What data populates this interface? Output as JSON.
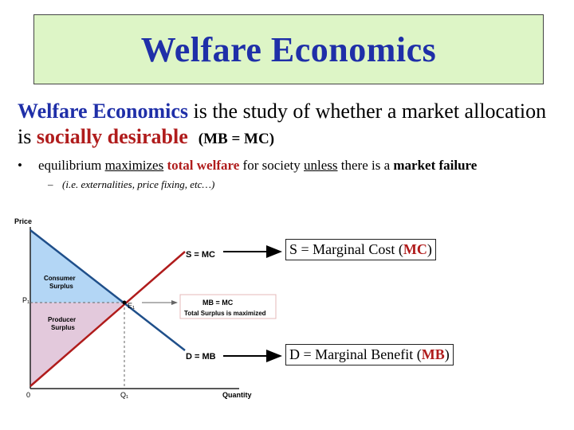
{
  "title": "Welfare Economics",
  "intro": {
    "term": "Welfare Economics",
    "text1": " is the study of whether a market allocation is ",
    "highlight": "socially desirable",
    "paren": "(MB = MC)"
  },
  "bullet": {
    "w1": "equilibrium ",
    "w2": "maximizes",
    "w3": " ",
    "w4": "total welfare",
    "w5": " for society ",
    "w6": "unless",
    "w7": " there is a ",
    "w8": "market failure"
  },
  "sub_bullet": "(i.e. externalities, price fixing, etc…)",
  "chart": {
    "y_axis_label": "Price",
    "x_axis_label": "Quantity",
    "origin": "0",
    "p1": "P₁",
    "q1": "Q₁",
    "e1": "E₁",
    "consumer_surplus": [
      "Consumer",
      "Surplus"
    ],
    "producer_surplus": [
      "Producer",
      "Surplus"
    ],
    "supply_label": "S = MC",
    "demand_label": "D = MB",
    "equilibrium_box": {
      "line1": "MB = MC",
      "line2": "Total Surplus is maximized"
    },
    "colors": {
      "consumer_surplus": "#b3d6f5",
      "producer_surplus": "#e3c9dc",
      "supply": "#b01c1c",
      "demand": "#1f4f8a"
    }
  },
  "callouts": {
    "supply": {
      "prefix": "S = Marginal Cost (",
      "key": "MC",
      "suffix": ")"
    },
    "demand": {
      "prefix": "D = Marginal Benefit (",
      "key": "MB",
      "suffix": ")"
    }
  }
}
